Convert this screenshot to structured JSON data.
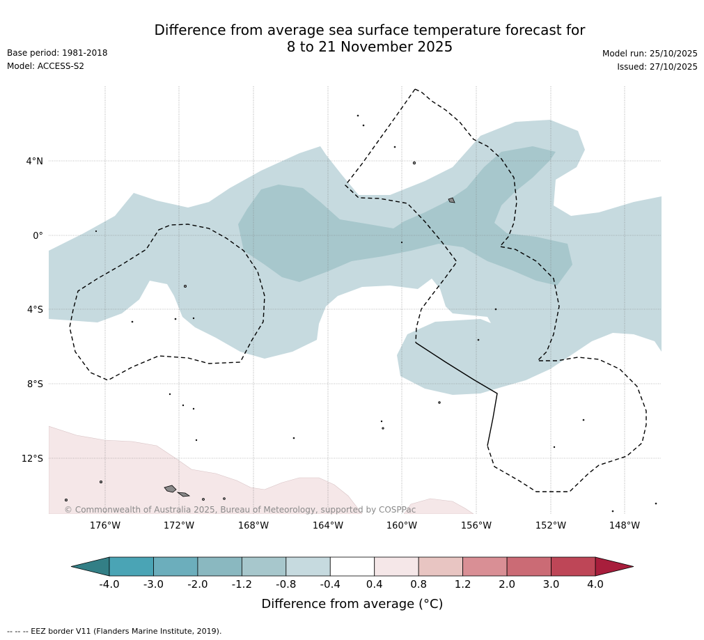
{
  "header": {
    "title_line1": "Difference from average sea surface temperature forecast for",
    "title_line2": "8 to 21 November 2025",
    "base_period": "Base period: 1981-2018",
    "model": "Model: ACCESS-S2",
    "model_run": "Model run: 25/10/2025",
    "issued": "Issued: 27/10/2025"
  },
  "map": {
    "lat_labels": [
      "4°N",
      "0°",
      "4°S",
      "8°S",
      "12°S"
    ],
    "lon_labels": [
      "176°W",
      "172°W",
      "168°W",
      "164°W",
      "160°W",
      "156°W",
      "152°W",
      "148°W"
    ],
    "copyright": "© Commonwealth of Australia 2025, Bureau of Meteorology, supported by COSPPac",
    "anomaly_regions": [
      {
        "name": "equatorial-cool-anomaly",
        "range": "-0.8 to -0.4"
      },
      {
        "name": "equatorial-cool-core",
        "range": "-1.2 to -0.8"
      },
      {
        "name": "southwest-warm-anomaly",
        "range": "0.4 to 0.8"
      }
    ]
  },
  "colorbar": {
    "tick_labels": [
      "-4.0",
      "-3.0",
      "-2.0",
      "-1.2",
      "-0.8",
      "-0.4",
      "0.4",
      "0.8",
      "1.2",
      "2.0",
      "3.0",
      "4.0"
    ],
    "colors": [
      "#4aa4b5",
      "#6caebc",
      "#8ab8c0",
      "#a7c7cc",
      "#c6dadf",
      "#ffffff",
      "#f5e7e8",
      "#e8c5c2",
      "#d98f95",
      "#cb6b75",
      "#be4657"
    ],
    "under_color": "#337f86",
    "over_color": "#a81e3c",
    "title": "Difference from average (°C)"
  },
  "footnote": "-- -- -- EEZ border V11 (Flanders Marine Institute, 2019)."
}
